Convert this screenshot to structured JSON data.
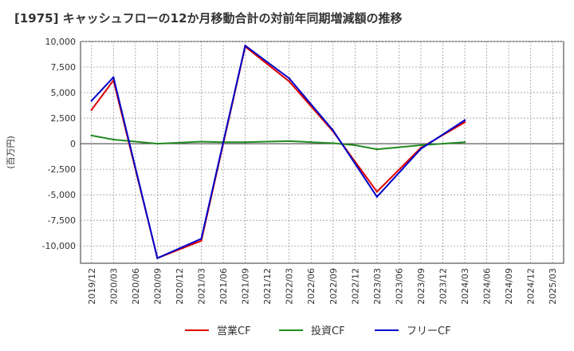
{
  "chart_data": {
    "type": "line",
    "title": "[1975]  キャッシュフローの12か月移動合計の対前年同期増減額の推移",
    "ylabel": "(百万円)",
    "xlabel": "",
    "ylim": [
      -11700,
      10000
    ],
    "yticks": [
      10000,
      7500,
      5000,
      2500,
      0,
      -2500,
      -5000,
      -7500,
      -10000
    ],
    "ytick_labels": [
      "10,000",
      "7,500",
      "5,000",
      "2,500",
      "0",
      "-2,500",
      "-5,000",
      "-7,500",
      "-10,000"
    ],
    "categories": [
      "2019/12",
      "2020/03",
      "2020/06",
      "2020/09",
      "2020/12",
      "2021/03",
      "2021/06",
      "2021/09",
      "2021/12",
      "2022/03",
      "2022/06",
      "2022/09",
      "2022/12",
      "2023/03",
      "2023/06",
      "2023/09",
      "2023/12",
      "2024/03",
      "2024/06",
      "2024/09",
      "2024/12",
      "2025/03"
    ],
    "grid": true,
    "legend_position": "bottom",
    "series": [
      {
        "name": "営業CF",
        "color": "#dd0000",
        "values": [
          3300,
          6200,
          null,
          -11200,
          null,
          -9500,
          null,
          9500,
          null,
          6100,
          null,
          1200,
          null,
          -4700,
          null,
          -400,
          null,
          2100,
          null,
          null,
          null,
          null
        ]
      },
      {
        "name": "投資CF",
        "color": "#228b22",
        "values": [
          800,
          400,
          200,
          0,
          100,
          200,
          150,
          150,
          200,
          250,
          150,
          50,
          -150,
          -550,
          -350,
          -150,
          0,
          150,
          null,
          null,
          null,
          null
        ]
      },
      {
        "name": "フリーCF",
        "color": "#0000cc",
        "values": [
          4200,
          6500,
          null,
          -11200,
          null,
          -9300,
          null,
          9600,
          null,
          6400,
          null,
          1300,
          null,
          -5200,
          null,
          -500,
          null,
          2300,
          null,
          null,
          null,
          null
        ]
      }
    ]
  }
}
